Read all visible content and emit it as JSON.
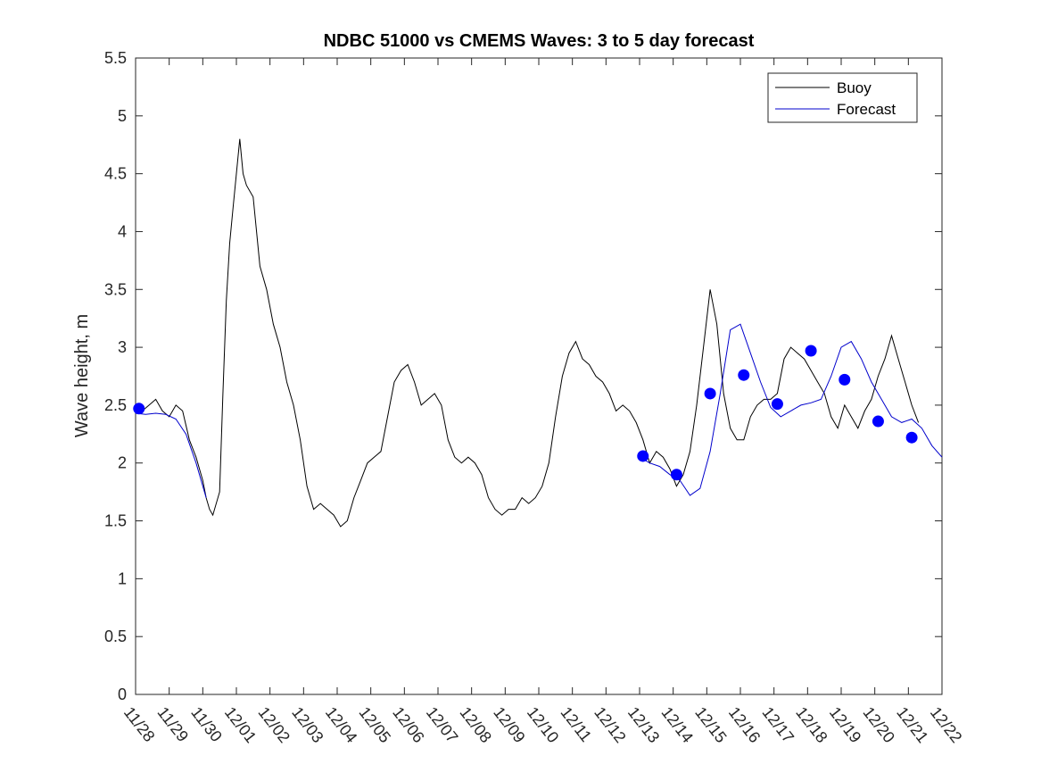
{
  "chart_data": {
    "type": "line",
    "title": "NDBC 51000 vs CMEMS Waves: 3 to 5 day forecast",
    "xlabel": "",
    "ylabel": "Wave height, m",
    "xlim": [
      "11/28",
      "12/22"
    ],
    "ylim": [
      0,
      5.5
    ],
    "y_ticks": [
      "0",
      "0.5",
      "1",
      "1.5",
      "2",
      "2.5",
      "3",
      "3.5",
      "4",
      "4.5",
      "5",
      "5.5"
    ],
    "x_ticks": [
      "11/28",
      "11/29",
      "11/30",
      "12/01",
      "12/02",
      "12/03",
      "12/04",
      "12/05",
      "12/06",
      "12/07",
      "12/08",
      "12/09",
      "12/10",
      "12/11",
      "12/12",
      "12/13",
      "12/14",
      "12/15",
      "12/16",
      "12/17",
      "12/18",
      "12/19",
      "12/20",
      "12/21",
      "12/22"
    ],
    "grid": false,
    "legend_position": "top-right",
    "series": [
      {
        "name": "Buoy",
        "color": "#000000",
        "x": [
          0.0,
          0.2,
          0.4,
          0.6,
          0.8,
          1.0,
          1.2,
          1.4,
          1.6,
          1.8,
          2.0,
          2.1,
          2.2,
          2.3,
          2.5,
          2.6,
          2.7,
          2.8,
          2.9,
          3.0,
          3.1,
          3.2,
          3.3,
          3.5,
          3.7,
          3.9,
          4.1,
          4.3,
          4.5,
          4.7,
          4.9,
          5.1,
          5.3,
          5.5,
          5.7,
          5.9,
          6.1,
          6.3,
          6.5,
          6.7,
          6.9,
          7.1,
          7.3,
          7.5,
          7.7,
          7.9,
          8.1,
          8.3,
          8.5,
          8.7,
          8.9,
          9.1,
          9.3,
          9.5,
          9.7,
          9.9,
          10.1,
          10.3,
          10.5,
          10.7,
          10.9,
          11.1,
          11.3,
          11.5,
          11.7,
          11.9,
          12.1,
          12.3,
          12.5,
          12.7,
          12.9,
          13.1,
          13.3,
          13.5,
          13.7,
          13.9,
          14.1,
          14.3,
          14.5,
          14.7,
          14.9,
          15.1,
          15.3,
          15.5,
          15.7,
          15.9,
          16.1,
          16.3,
          16.5,
          16.7,
          16.9,
          17.1,
          17.3,
          17.5,
          17.7,
          17.9,
          18.1,
          18.3,
          18.5,
          18.7,
          18.9,
          19.1,
          19.3,
          19.5,
          19.7,
          19.9,
          20.1,
          20.3,
          20.5,
          20.7,
          20.9,
          21.1,
          21.3,
          21.5,
          21.7,
          21.9,
          22.1,
          22.3,
          22.5,
          22.7,
          22.9,
          23.1,
          23.3
        ],
        "y": [
          2.5,
          2.45,
          2.5,
          2.55,
          2.45,
          2.4,
          2.5,
          2.45,
          2.2,
          2.05,
          1.85,
          1.7,
          1.6,
          1.55,
          1.75,
          2.6,
          3.4,
          3.9,
          4.2,
          4.5,
          4.8,
          4.5,
          4.4,
          4.3,
          3.7,
          3.5,
          3.2,
          3.0,
          2.7,
          2.5,
          2.2,
          1.8,
          1.6,
          1.65,
          1.6,
          1.55,
          1.45,
          1.5,
          1.7,
          1.85,
          2.0,
          2.05,
          2.1,
          2.4,
          2.7,
          2.8,
          2.85,
          2.7,
          2.5,
          2.55,
          2.6,
          2.5,
          2.2,
          2.05,
          2.0,
          2.05,
          2.0,
          1.9,
          1.7,
          1.6,
          1.55,
          1.6,
          1.6,
          1.7,
          1.65,
          1.7,
          1.8,
          2.0,
          2.4,
          2.75,
          2.95,
          3.05,
          2.9,
          2.85,
          2.75,
          2.7,
          2.6,
          2.45,
          2.5,
          2.45,
          2.35,
          2.2,
          2.0,
          2.1,
          2.05,
          1.95,
          1.8,
          1.9,
          2.1,
          2.5,
          3.0,
          3.5,
          3.2,
          2.6,
          2.3,
          2.2,
          2.2,
          2.4,
          2.5,
          2.55,
          2.55,
          2.6,
          2.9,
          3.0,
          2.95,
          2.9,
          2.8,
          2.7,
          2.6,
          2.4,
          2.3,
          2.5,
          2.4,
          2.3,
          2.45,
          2.55,
          2.75,
          2.9,
          3.1,
          2.9,
          2.7,
          2.5,
          2.35
        ]
      },
      {
        "name": "Forecast",
        "color": "#0000cc",
        "x": [
          0.0,
          0.3,
          0.6,
          0.9,
          1.2,
          1.5,
          1.8,
          2.1
        ],
        "y": [
          2.43,
          2.42,
          2.43,
          2.42,
          2.38,
          2.25,
          2.0,
          1.7
        ],
        "x2": [
          15.0,
          15.3,
          15.6,
          15.9,
          16.2,
          16.5,
          16.8,
          17.1,
          17.4,
          17.7,
          18.0,
          18.3,
          18.6,
          18.9,
          19.2,
          19.5,
          19.8,
          20.1,
          20.4,
          20.7,
          21.0,
          21.3,
          21.6,
          21.9,
          22.2,
          22.5,
          22.8,
          23.1,
          23.4,
          23.7,
          24.0
        ],
        "y2": [
          2.05,
          2.0,
          1.97,
          1.9,
          1.85,
          1.72,
          1.78,
          2.1,
          2.6,
          3.15,
          3.2,
          2.95,
          2.7,
          2.48,
          2.4,
          2.45,
          2.5,
          2.52,
          2.55,
          2.75,
          3.0,
          3.05,
          2.9,
          2.7,
          2.55,
          2.4,
          2.35,
          2.38,
          2.3,
          2.15,
          2.05
        ]
      },
      {
        "name": "",
        "color": "#0000ff",
        "marker": "circle",
        "x": [
          0.1,
          15.1,
          16.1,
          17.1,
          18.1,
          19.1,
          20.1,
          21.1,
          22.1,
          23.1
        ],
        "y": [
          2.47,
          2.06,
          1.9,
          2.6,
          2.76,
          2.51,
          2.97,
          2.72,
          2.36,
          2.22
        ]
      }
    ]
  }
}
